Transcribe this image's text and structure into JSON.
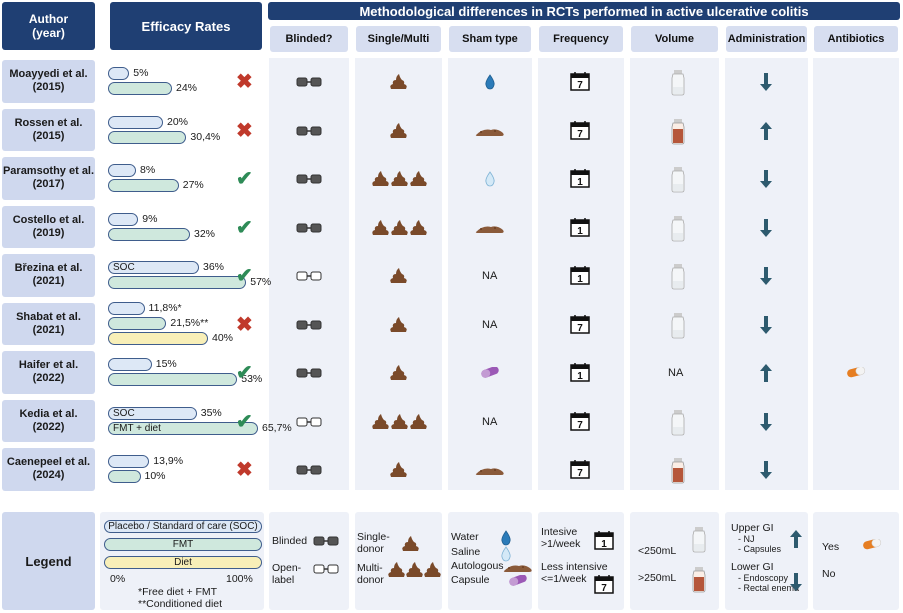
{
  "headers": {
    "author": "Author\n(year)",
    "efficacy": "Efficacy Rates",
    "methodological": "Methodological differences in RCTs performed in active ulcerative colitis",
    "columns": [
      "Blinded?",
      "Single/Multi",
      "Sham type",
      "Frequency",
      "Volume",
      "Administration",
      "Antibiotics"
    ]
  },
  "rows": [
    {
      "author": "Moayyedi et al.",
      "year": "(2015)",
      "bars": [
        {
          "type": "placebo",
          "label": "",
          "pct": "5%",
          "value": 5
        },
        {
          "type": "fmt",
          "label": "",
          "pct": "24%",
          "value": 24
        }
      ],
      "result": "cross",
      "blinded": "blinded",
      "donor": "single",
      "sham": "water",
      "frequency": "7",
      "volume": "small",
      "admin": "lower",
      "antibiotics": ""
    },
    {
      "author": "Rossen et al.",
      "year": "(2015)",
      "bars": [
        {
          "type": "placebo",
          "label": "",
          "pct": "20%",
          "value": 20
        },
        {
          "type": "fmt",
          "label": "",
          "pct": "30,4%",
          "value": 30.4
        }
      ],
      "result": "cross",
      "blinded": "blinded",
      "donor": "single",
      "sham": "autologous",
      "frequency": "7",
      "volume": "large",
      "admin": "upper",
      "antibiotics": ""
    },
    {
      "author": "Paramsothy et al.",
      "year": "(2017)",
      "bars": [
        {
          "type": "placebo",
          "label": "",
          "pct": "8%",
          "value": 8
        },
        {
          "type": "fmt",
          "label": "",
          "pct": "27%",
          "value": 27
        }
      ],
      "result": "check",
      "blinded": "blinded",
      "donor": "multi",
      "sham": "saline",
      "frequency": "1",
      "volume": "small",
      "admin": "lower",
      "antibiotics": ""
    },
    {
      "author": "Costello et al.",
      "year": "(2019)",
      "bars": [
        {
          "type": "placebo",
          "label": "",
          "pct": "9%",
          "value": 9
        },
        {
          "type": "fmt",
          "label": "",
          "pct": "32%",
          "value": 32
        }
      ],
      "result": "check",
      "blinded": "blinded",
      "donor": "multi",
      "sham": "autologous",
      "frequency": "1",
      "volume": "small",
      "admin": "lower",
      "antibiotics": ""
    },
    {
      "author": "Březina et al.",
      "year": "(2021)",
      "bars": [
        {
          "type": "placebo",
          "label": "SOC",
          "pct": "36%",
          "value": 36
        },
        {
          "type": "fmt",
          "label": "",
          "pct": "57%",
          "value": 57
        }
      ],
      "result": "check",
      "blinded": "open",
      "donor": "single",
      "sham": "NA",
      "frequency": "1",
      "volume": "small",
      "admin": "lower",
      "antibiotics": ""
    },
    {
      "author": "Shabat et al.",
      "year": "(2021)",
      "bars": [
        {
          "type": "placebo",
          "label": "",
          "pct": "11,8%*",
          "value": 11.8
        },
        {
          "type": "fmt",
          "label": "",
          "pct": "21,5%**",
          "value": 21.5
        },
        {
          "type": "diet",
          "label": "",
          "pct": "40%",
          "value": 40
        }
      ],
      "result": "cross",
      "blinded": "blinded",
      "donor": "single",
      "sham": "NA",
      "frequency": "7",
      "volume": "small",
      "admin": "lower",
      "antibiotics": ""
    },
    {
      "author": "Haifer et al.",
      "year": "(2022)",
      "bars": [
        {
          "type": "placebo",
          "label": "",
          "pct": "15%",
          "value": 15
        },
        {
          "type": "fmt",
          "label": "",
          "pct": "53%",
          "value": 53
        }
      ],
      "result": "check",
      "blinded": "blinded",
      "donor": "single",
      "sham": "capsule",
      "frequency": "1",
      "volume": "NA",
      "admin": "upper",
      "antibiotics": "yes"
    },
    {
      "author": "Kedia et al.",
      "year": "(2022)",
      "bars": [
        {
          "type": "placebo",
          "label": "SOC",
          "pct": "35%",
          "value": 35
        },
        {
          "type": "fmt",
          "label": "FMT + diet",
          "pct": "65,7%",
          "value": 65.7
        }
      ],
      "result": "check",
      "blinded": "open",
      "donor": "multi",
      "sham": "NA",
      "frequency": "7",
      "volume": "small",
      "admin": "lower",
      "antibiotics": ""
    },
    {
      "author": "Caenepeel et al.",
      "year": "(2024)",
      "bars": [
        {
          "type": "placebo",
          "label": "",
          "pct": "13,9%",
          "value": 13.9
        },
        {
          "type": "fmt",
          "label": "",
          "pct": "10%",
          "value": 10
        }
      ],
      "result": "cross",
      "blinded": "blinded",
      "donor": "single",
      "sham": "autologous",
      "frequency": "7",
      "volume": "large",
      "admin": "lower",
      "antibiotics": ""
    }
  ],
  "na_label": "NA",
  "legend": {
    "title": "Legend",
    "bars": [
      "Placebo / Standard of care (SOC)",
      "FMT",
      "Diet"
    ],
    "axis_min": "0%",
    "axis_max": "100%",
    "note1": "*Free diet + FMT",
    "note2": "**Conditioned diet",
    "blinded": "Blinded",
    "open1": "Open-",
    "open2": "label",
    "single1": "Single-",
    "single2": "donor",
    "multi1": "Multi-",
    "multi2": "donor",
    "water": "Water",
    "saline": "Saline",
    "autologous": "Autologous",
    "capsule": "Capsule",
    "intensive1": "Intesive",
    "intensive2": ">1/week",
    "less1": "Less intensive",
    "less2": "<=1/week",
    "vol_small": "<250mL",
    "vol_large": ">250mL",
    "upper": "Upper GI",
    "upper_items": [
      "- NJ",
      "- Capsules"
    ],
    "lower": "Lower GI",
    "lower_items": [
      "- Endoscopy",
      "- Rectal enema"
    ],
    "yes": "Yes",
    "no": "No"
  },
  "colors": {
    "header": "#1f3f73",
    "placebo": "#dde8f6",
    "fmt": "#cfe8dd",
    "diet": "#f8efb8",
    "check": "#2e8b57",
    "cross": "#c0392b",
    "admin_arrow": "#2d5a6e",
    "stool": "#7a4a2a"
  }
}
